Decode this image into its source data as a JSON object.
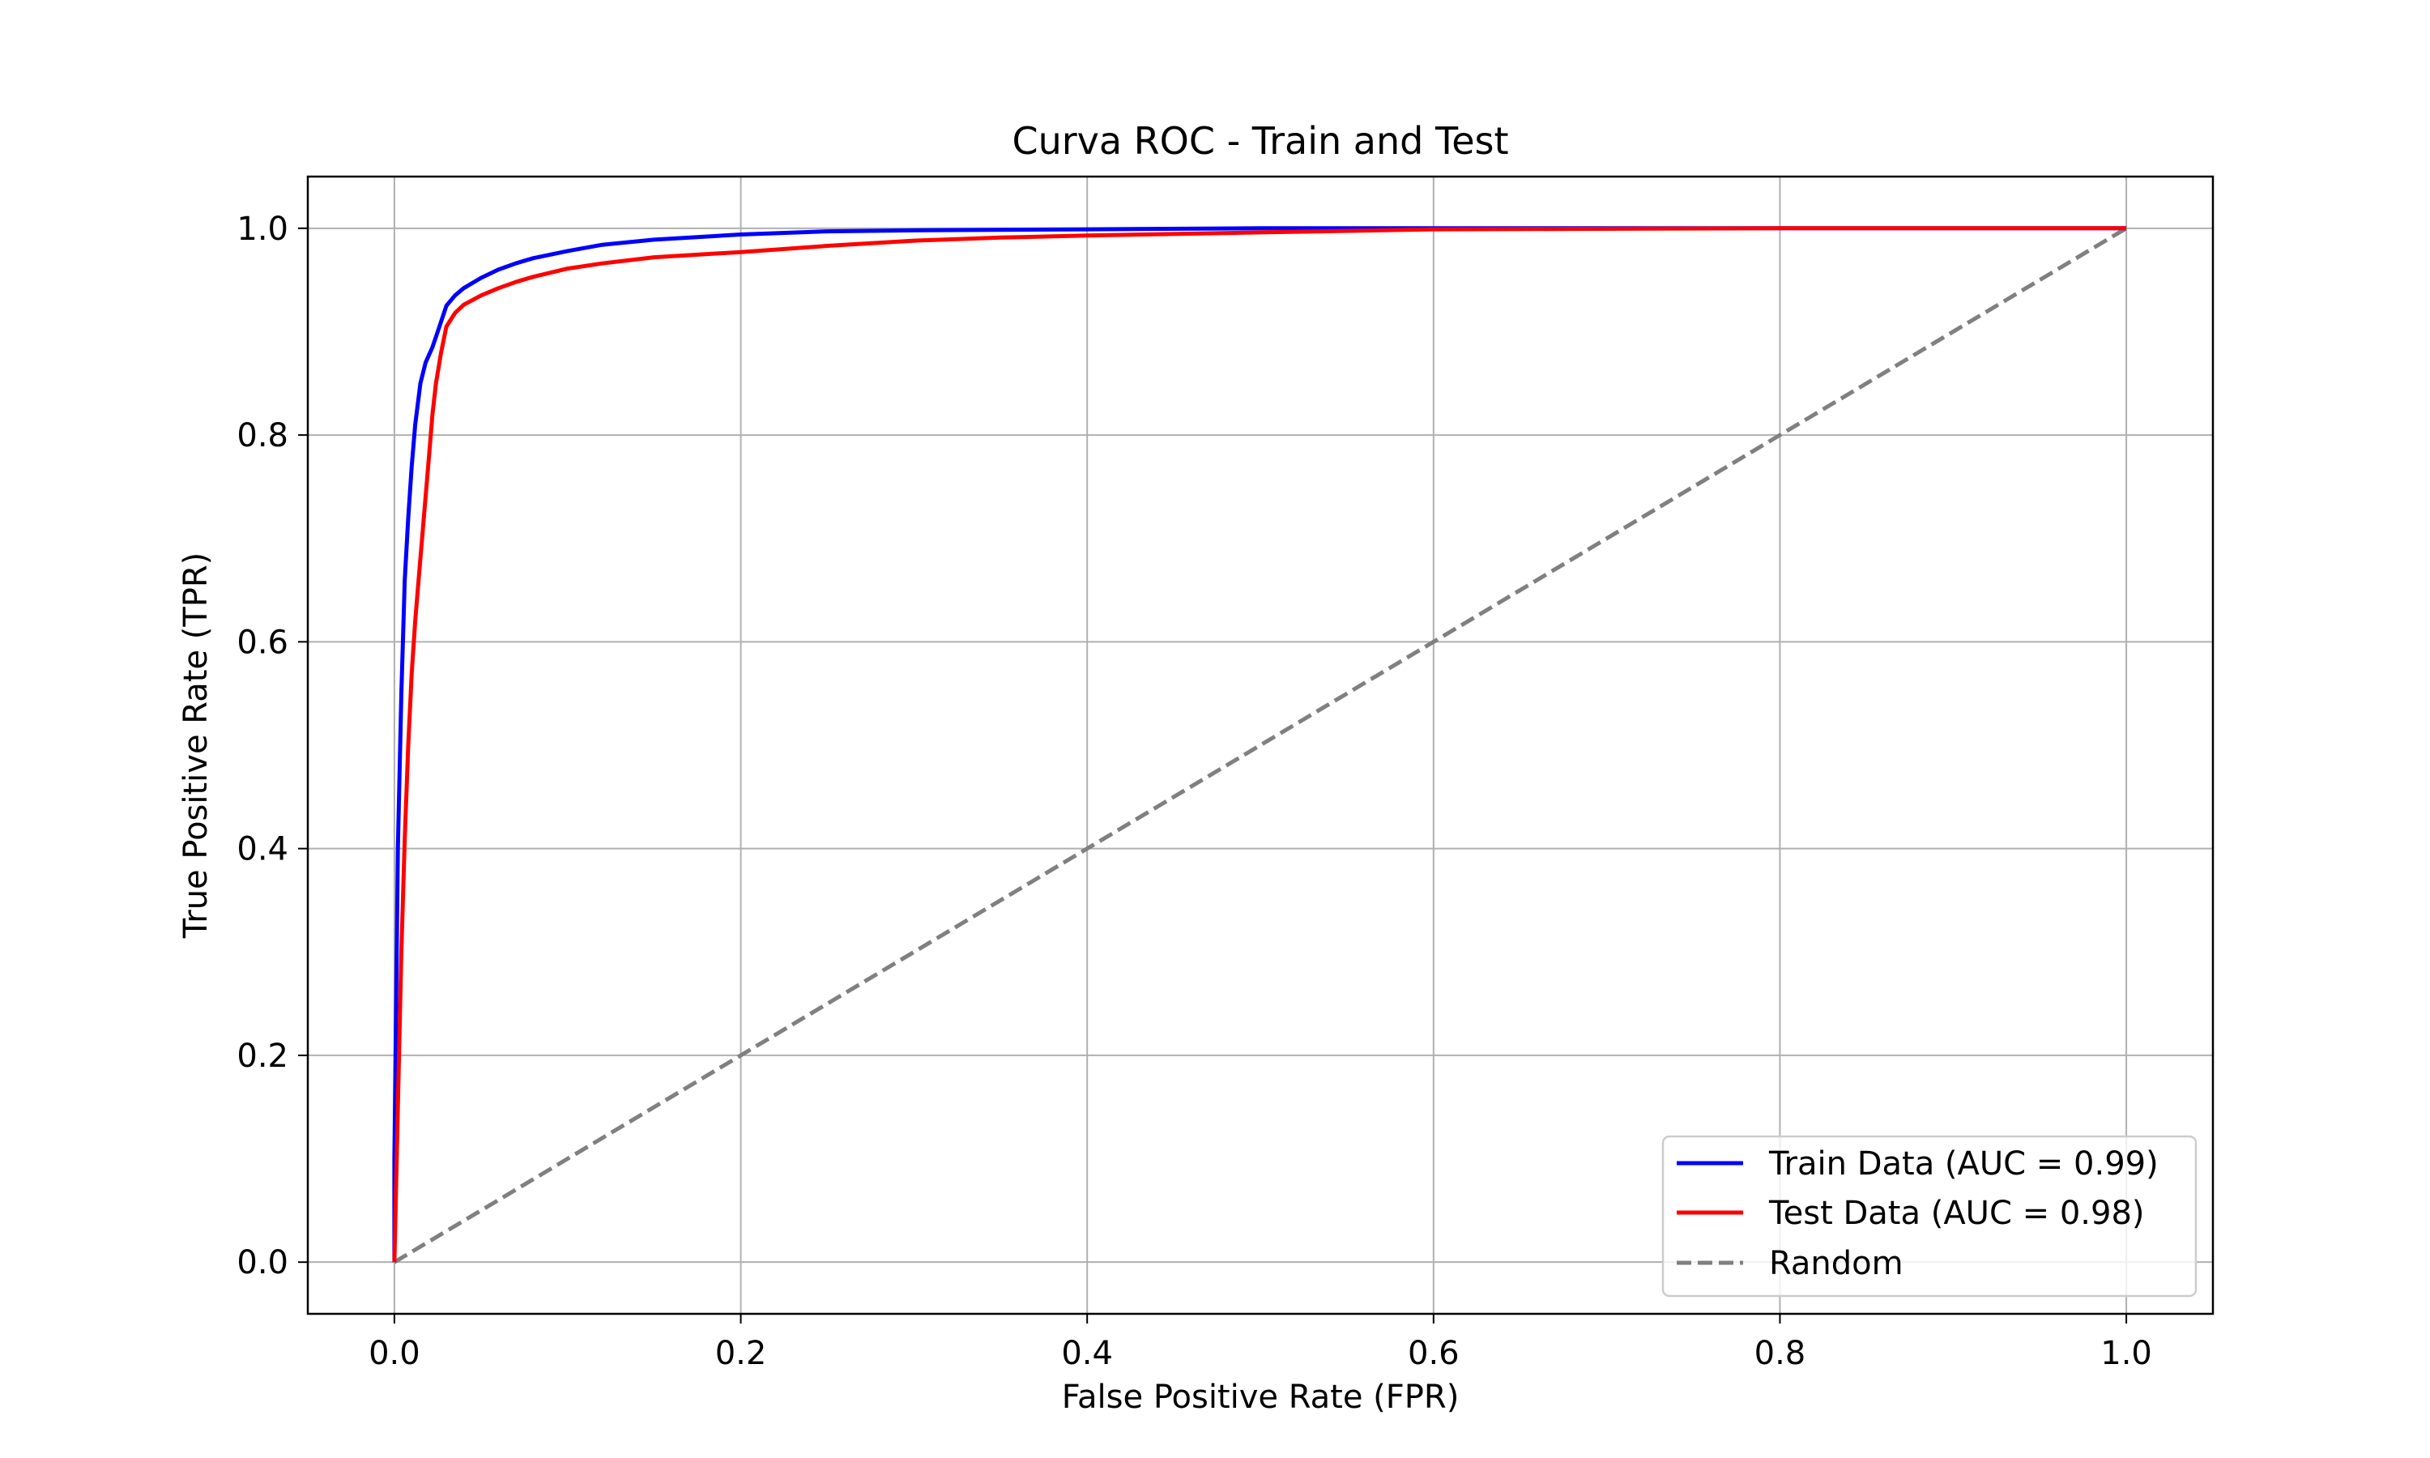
{
  "chart_data": {
    "type": "line",
    "title": "Curva ROC - Train and Test",
    "xlabel": "False Positive Rate (FPR)",
    "ylabel": "True Positive Rate (TPR)",
    "xlim": [
      -0.05,
      1.05
    ],
    "ylim": [
      -0.05,
      1.05
    ],
    "xticks": [
      0.0,
      0.2,
      0.4,
      0.6,
      0.8,
      1.0
    ],
    "xtick_labels": [
      "0.0",
      "0.2",
      "0.4",
      "0.6",
      "0.8",
      "1.0"
    ],
    "yticks": [
      0.0,
      0.2,
      0.4,
      0.6,
      0.8,
      1.0
    ],
    "ytick_labels": [
      "0.0",
      "0.2",
      "0.4",
      "0.6",
      "0.8",
      "1.0"
    ],
    "grid": true,
    "legend_position": "lower right",
    "series": [
      {
        "name": "Train Data (AUC = 0.99)",
        "color": "#0000ff",
        "style": "solid",
        "x": [
          0.0,
          0.0,
          0.002,
          0.004,
          0.006,
          0.008,
          0.01,
          0.012,
          0.015,
          0.018,
          0.022,
          0.025,
          0.03,
          0.035,
          0.04,
          0.05,
          0.06,
          0.07,
          0.08,
          0.1,
          0.12,
          0.15,
          0.2,
          0.25,
          0.3,
          0.4,
          0.5,
          0.58,
          0.7,
          0.8,
          0.9,
          1.0
        ],
        "y": [
          0.0,
          0.1,
          0.4,
          0.55,
          0.66,
          0.72,
          0.77,
          0.81,
          0.85,
          0.87,
          0.885,
          0.9,
          0.925,
          0.935,
          0.942,
          0.952,
          0.96,
          0.966,
          0.971,
          0.978,
          0.984,
          0.989,
          0.994,
          0.997,
          0.998,
          0.999,
          1.0,
          1.0,
          1.0,
          1.0,
          1.0,
          1.0
        ]
      },
      {
        "name": "Test Data (AUC = 0.98)",
        "color": "#ff0000",
        "style": "solid",
        "x": [
          0.0,
          0.002,
          0.004,
          0.006,
          0.008,
          0.01,
          0.012,
          0.014,
          0.016,
          0.018,
          0.02,
          0.022,
          0.024,
          0.027,
          0.03,
          0.035,
          0.04,
          0.05,
          0.06,
          0.07,
          0.08,
          0.1,
          0.12,
          0.15,
          0.2,
          0.25,
          0.3,
          0.35,
          0.4,
          0.5,
          0.6,
          0.8,
          1.0
        ],
        "y": [
          0.0,
          0.15,
          0.3,
          0.41,
          0.5,
          0.57,
          0.62,
          0.66,
          0.7,
          0.74,
          0.78,
          0.82,
          0.85,
          0.88,
          0.905,
          0.918,
          0.926,
          0.935,
          0.942,
          0.948,
          0.953,
          0.961,
          0.966,
          0.972,
          0.977,
          0.983,
          0.988,
          0.991,
          0.993,
          0.996,
          0.999,
          1.0,
          1.0
        ]
      },
      {
        "name": "Random",
        "color": "#808080",
        "style": "dashed",
        "x": [
          0.0,
          1.0
        ],
        "y": [
          0.0,
          1.0
        ]
      }
    ]
  }
}
